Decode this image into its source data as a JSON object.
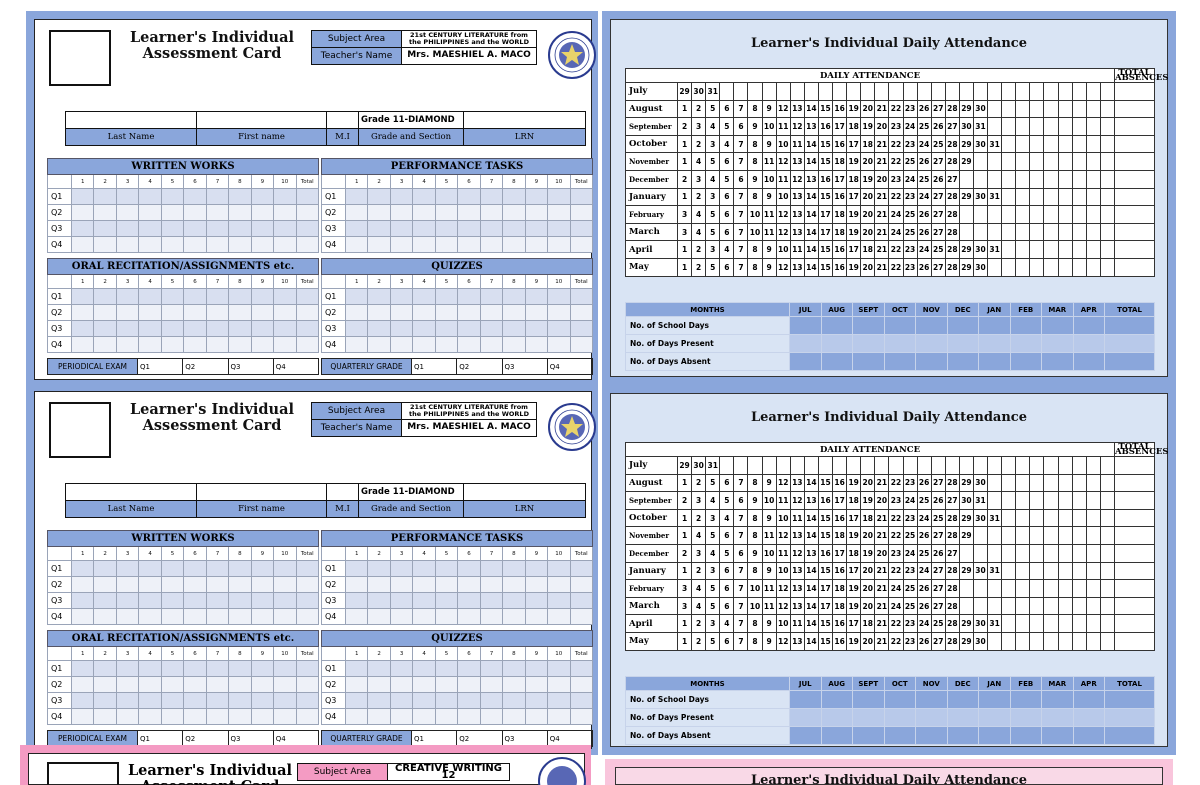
{
  "assessment_card": {
    "title": "Learner's Individual Assessment Card",
    "subject_area_label": "Subject Area",
    "subject_area_value": "21st CENTURY LITERATURE from the PHILIPPINES and the WORLD",
    "teacher_label": "Teacher's Name",
    "teacher_value": "Mrs. MAESHIEL A. MACO",
    "grade_section_value": "Grade 11-DIAMOND",
    "name_labels": [
      "Last Name",
      "First name",
      "M.I",
      "Grade and Section",
      "LRN"
    ],
    "written_works": "WRITTEN WORKS",
    "performance_tasks": "PERFORMANCE TASKS",
    "oral_recitation": "ORAL RECITATION/ASSIGNMENTS etc.",
    "quizzes": "QUIZZES",
    "score_cols": [
      "1",
      "2",
      "3",
      "4",
      "5",
      "6",
      "7",
      "8",
      "9",
      "10",
      "Total"
    ],
    "quarters": [
      "Q1",
      "Q2",
      "Q3",
      "Q4"
    ],
    "periodical_exam": "PERIODICAL EXAM",
    "quarterly_grade": "QUARTERLY GRADE"
  },
  "pink_card": {
    "title": "Learner's Individual Assessment Card",
    "subject_area_label": "Subject Area",
    "subject_area_value": "CREATIVE WRITING 12"
  },
  "attendance": {
    "title": "Learner's Individual Daily Attendance",
    "grid_title": "DAILY ATTENDANCE",
    "total_absences": "TOTAL ABSENCES",
    "months": [
      {
        "name": "July",
        "days": [
          "29",
          "30",
          "31"
        ]
      },
      {
        "name": "August",
        "days": [
          "1",
          "2",
          "5",
          "6",
          "7",
          "8",
          "9",
          "12",
          "13",
          "14",
          "15",
          "16",
          "19",
          "20",
          "21",
          "22",
          "23",
          "26",
          "27",
          "28",
          "29",
          "30"
        ]
      },
      {
        "name": "September",
        "days": [
          "2",
          "3",
          "4",
          "5",
          "6",
          "9",
          "10",
          "11",
          "12",
          "13",
          "16",
          "17",
          "18",
          "19",
          "20",
          "23",
          "24",
          "25",
          "26",
          "27",
          "30",
          "31"
        ]
      },
      {
        "name": "October",
        "days": [
          "1",
          "2",
          "3",
          "4",
          "7",
          "8",
          "9",
          "10",
          "11",
          "14",
          "15",
          "16",
          "17",
          "18",
          "21",
          "22",
          "23",
          "24",
          "25",
          "28",
          "29",
          "30",
          "31"
        ]
      },
      {
        "name": "November",
        "days": [
          "1",
          "4",
          "5",
          "6",
          "7",
          "8",
          "11",
          "12",
          "13",
          "14",
          "15",
          "18",
          "19",
          "20",
          "21",
          "22",
          "25",
          "26",
          "27",
          "28",
          "29"
        ]
      },
      {
        "name": "December",
        "days": [
          "2",
          "3",
          "4",
          "5",
          "6",
          "9",
          "10",
          "11",
          "12",
          "13",
          "16",
          "17",
          "18",
          "19",
          "20",
          "23",
          "24",
          "25",
          "26",
          "27"
        ]
      },
      {
        "name": "January",
        "days": [
          "1",
          "2",
          "3",
          "6",
          "7",
          "8",
          "9",
          "10",
          "13",
          "14",
          "15",
          "16",
          "17",
          "20",
          "21",
          "22",
          "23",
          "24",
          "27",
          "28",
          "29",
          "30",
          "31"
        ]
      },
      {
        "name": "February",
        "days": [
          "3",
          "4",
          "5",
          "6",
          "7",
          "10",
          "11",
          "12",
          "13",
          "14",
          "17",
          "18",
          "19",
          "20",
          "21",
          "24",
          "25",
          "26",
          "27",
          "28"
        ]
      },
      {
        "name": "March",
        "days": [
          "3",
          "4",
          "5",
          "6",
          "7",
          "10",
          "11",
          "12",
          "13",
          "14",
          "17",
          "18",
          "19",
          "20",
          "21",
          "24",
          "25",
          "26",
          "27",
          "28"
        ]
      },
      {
        "name": "April",
        "days": [
          "1",
          "2",
          "3",
          "4",
          "7",
          "8",
          "9",
          "10",
          "11",
          "14",
          "15",
          "16",
          "17",
          "18",
          "21",
          "22",
          "23",
          "24",
          "25",
          "28",
          "29",
          "30",
          "31"
        ]
      },
      {
        "name": "May",
        "days": [
          "1",
          "2",
          "5",
          "6",
          "7",
          "8",
          "9",
          "12",
          "13",
          "14",
          "15",
          "16",
          "19",
          "20",
          "21",
          "22",
          "23",
          "26",
          "27",
          "28",
          "29",
          "30"
        ]
      }
    ],
    "summary_months": [
      "MONTHS",
      "JUL",
      "AUG",
      "SEPT",
      "OCT",
      "NOV",
      "DEC",
      "JAN",
      "FEB",
      "MAR",
      "APR",
      "TOTAL"
    ],
    "summary_rows": [
      "No. of School Days",
      "No. of Days Present",
      "No. of Days Absent"
    ]
  },
  "colors": {
    "card_blue": "#8aa6db",
    "att_bg": "#d9e4f4",
    "pink": "#f49bc3",
    "pink_light": "#f9c5dc"
  }
}
